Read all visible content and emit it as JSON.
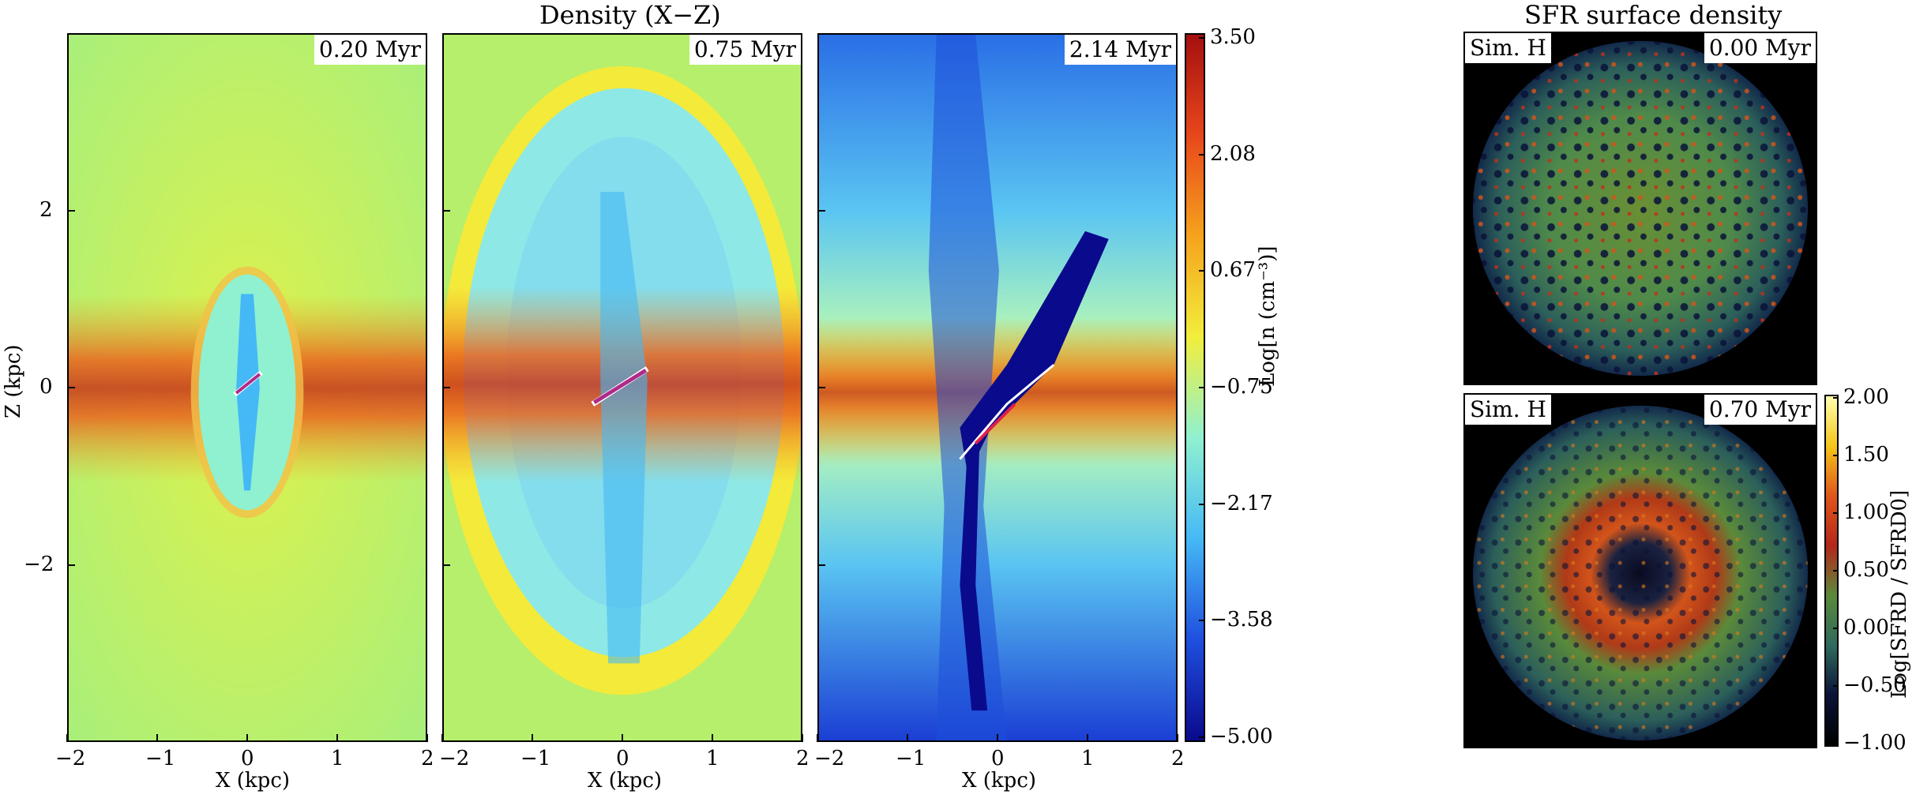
{
  "figure": {
    "left_title": "Density (X−Z)",
    "right_title": "SFR surface density",
    "density_panels": [
      {
        "time": "0.20 Myr"
      },
      {
        "time": "0.75 Myr"
      },
      {
        "time": "2.14 Myr"
      }
    ],
    "sfr_panels": [
      {
        "sim": "Sim. H",
        "time": "0.00 Myr"
      },
      {
        "sim": "Sim. H",
        "time": "0.70 Myr"
      }
    ],
    "x_axis": {
      "label": "X (kpc)",
      "ticks": [
        "−2",
        "−1",
        "0",
        "1",
        "2"
      ],
      "range": [
        -2,
        2
      ]
    },
    "z_axis": {
      "label": "Z (kpc)",
      "ticks": [
        "2",
        "0",
        "−2"
      ],
      "range": [
        -4,
        4
      ]
    },
    "density_colorbar": {
      "label": "Log[n (cm⁻³)]",
      "ticks": [
        "3.50",
        "2.08",
        "0.67",
        "−0.75",
        "−2.17",
        "−3.58",
        "−5.00"
      ],
      "colors": [
        "#a50f0f",
        "#e8471b",
        "#f6a31c",
        "#f2ee3c",
        "#8ff1d0",
        "#45b9f5",
        "#1f4fe0",
        "#0a0a8c"
      ]
    },
    "sfr_colorbar": {
      "label": "Log[SFRD / SFRD0]",
      "ticks": [
        "2.00",
        "1.50",
        "1.00",
        "0.50",
        "0.00",
        "−0.50",
        "−1.00"
      ],
      "colors": [
        "#ffffb0",
        "#f5c518",
        "#e0561a",
        "#b5271a",
        "#5a8a3a",
        "#2f6a5e",
        "#0a1238",
        "#000000"
      ]
    }
  }
}
